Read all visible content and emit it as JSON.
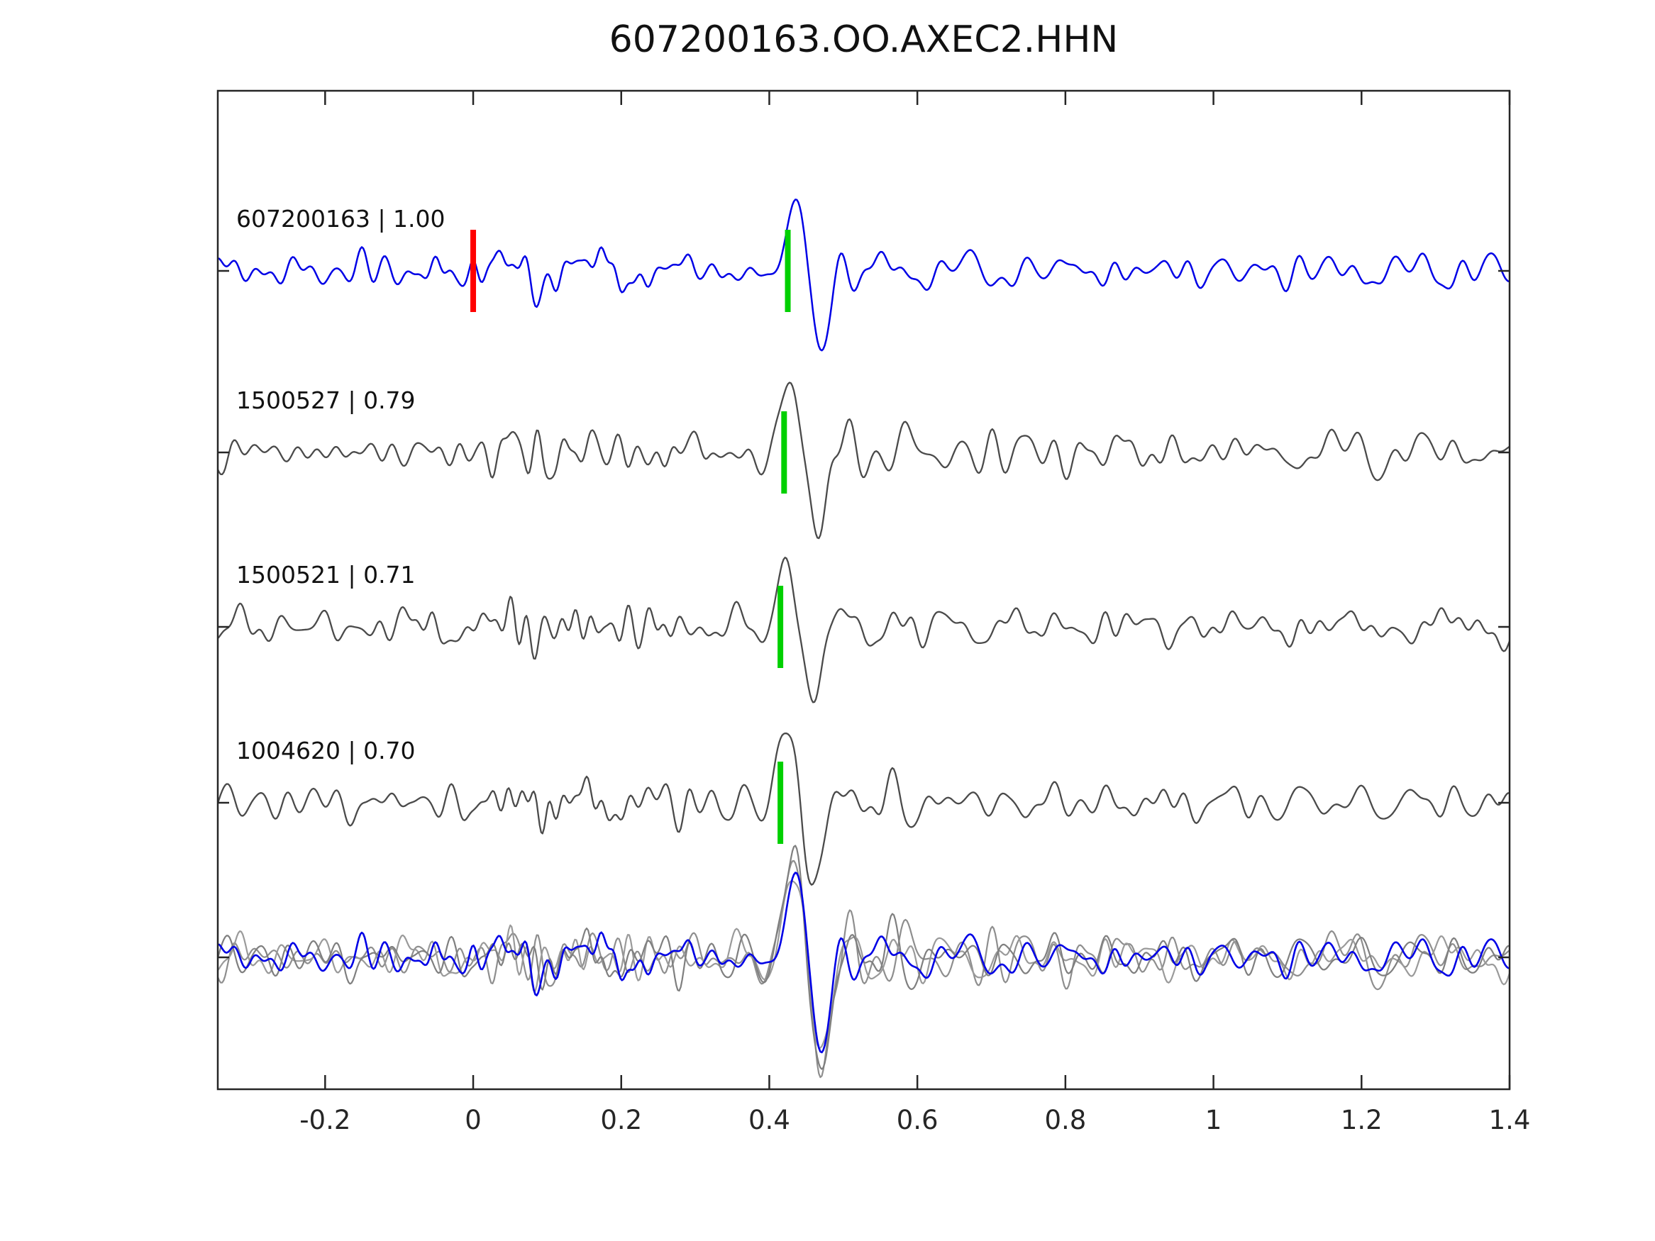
{
  "title": "607200163.OO.AXEC2.HHN",
  "chart_data": {
    "type": "line",
    "title": "607200163.OO.AXEC2.HHN",
    "xlabel": "",
    "ylabel": "",
    "xlim": [
      -0.345,
      1.4
    ],
    "x_tick_values": [
      -0.2,
      0,
      0.2,
      0.4,
      0.6,
      0.8,
      1,
      1.2,
      1.4
    ],
    "x_tick_labels": [
      "-0.2",
      "0",
      "0.2",
      "0.4",
      "0.6",
      "0.8",
      "1",
      "1.2",
      "1.4"
    ],
    "grid": false,
    "legend": null,
    "background": "#ffffff",
    "axis_color": "#262626",
    "description": "Template waveform (blue, cc=1.00) compared to three matched detections (gray). Red tick marks t=0 on the template trace; green ticks mark the aligned phase pick near t=0.42 on each trace. Bottom row overlays all aligned traces (grays + blue template).",
    "pick_colors": {
      "origin": "#ff0000",
      "phase": "#00d000"
    },
    "series": [
      {
        "row": 0,
        "event_id": "607200163",
        "correlation": 1.0,
        "label": "607200163 | 1.00",
        "color": "#0000e6",
        "line_width": 2.5,
        "seed": 11,
        "event_time": 0.455,
        "amps": {
          "noise": 12.5,
          "burst": 7,
          "event": 125,
          "coda": 16
        },
        "picks": [
          {
            "t": 0.0,
            "color": "#ff0000"
          },
          {
            "t": 0.425,
            "color": "#00d000"
          }
        ]
      },
      {
        "row": 1,
        "event_id": "1500527",
        "correlation": 0.79,
        "label": "1500527 | 0.79",
        "color": "#4a4a4a",
        "line_width": 2.3,
        "seed": 27,
        "event_time": 0.45,
        "amps": {
          "noise": 13,
          "burst": 12,
          "event": 138,
          "coda": 18
        },
        "picks": [
          {
            "t": 0.42,
            "color": "#00d000"
          }
        ]
      },
      {
        "row": 2,
        "event_id": "1500521",
        "correlation": 0.71,
        "label": "1500521 | 0.71",
        "color": "#4a4a4a",
        "line_width": 2.3,
        "seed": 35,
        "event_time": 0.445,
        "amps": {
          "noise": 12.5,
          "burst": 11,
          "event": 130,
          "coda": 17
        },
        "picks": [
          {
            "t": 0.415,
            "color": "#00d000"
          }
        ]
      },
      {
        "row": 3,
        "event_id": "1004620",
        "correlation": 0.7,
        "label": "1004620 | 0.70",
        "color": "#4a4a4a",
        "line_width": 2.3,
        "seed": 41,
        "event_time": 0.445,
        "amps": {
          "noise": 13,
          "burst": 13,
          "event": 135,
          "coda": 18
        },
        "picks": [
          {
            "t": 0.415,
            "color": "#00d000"
          }
        ]
      }
    ],
    "overlay_row": {
      "row": 4,
      "members": [
        {
          "color": "#8e8e8e",
          "line_width": 2.2,
          "seed": 27,
          "event_time": 0.455,
          "amps": {
            "noise": 15,
            "burst": 12,
            "event": 200,
            "coda": 26
          }
        },
        {
          "color": "#9a9a9a",
          "line_width": 2.2,
          "seed": 35,
          "event_time": 0.455,
          "amps": {
            "noise": 14,
            "burst": 11,
            "event": 185,
            "coda": 24
          }
        },
        {
          "color": "#7f7f7f",
          "line_width": 2.2,
          "seed": 41,
          "event_time": 0.455,
          "amps": {
            "noise": 15,
            "burst": 13,
            "event": 205,
            "coda": 25
          }
        },
        {
          "color": "#0000e6",
          "line_width": 2.6,
          "seed": 11,
          "event_time": 0.455,
          "amps": {
            "noise": 13,
            "burst": 8,
            "event": 150,
            "coda": 20
          }
        }
      ]
    }
  }
}
